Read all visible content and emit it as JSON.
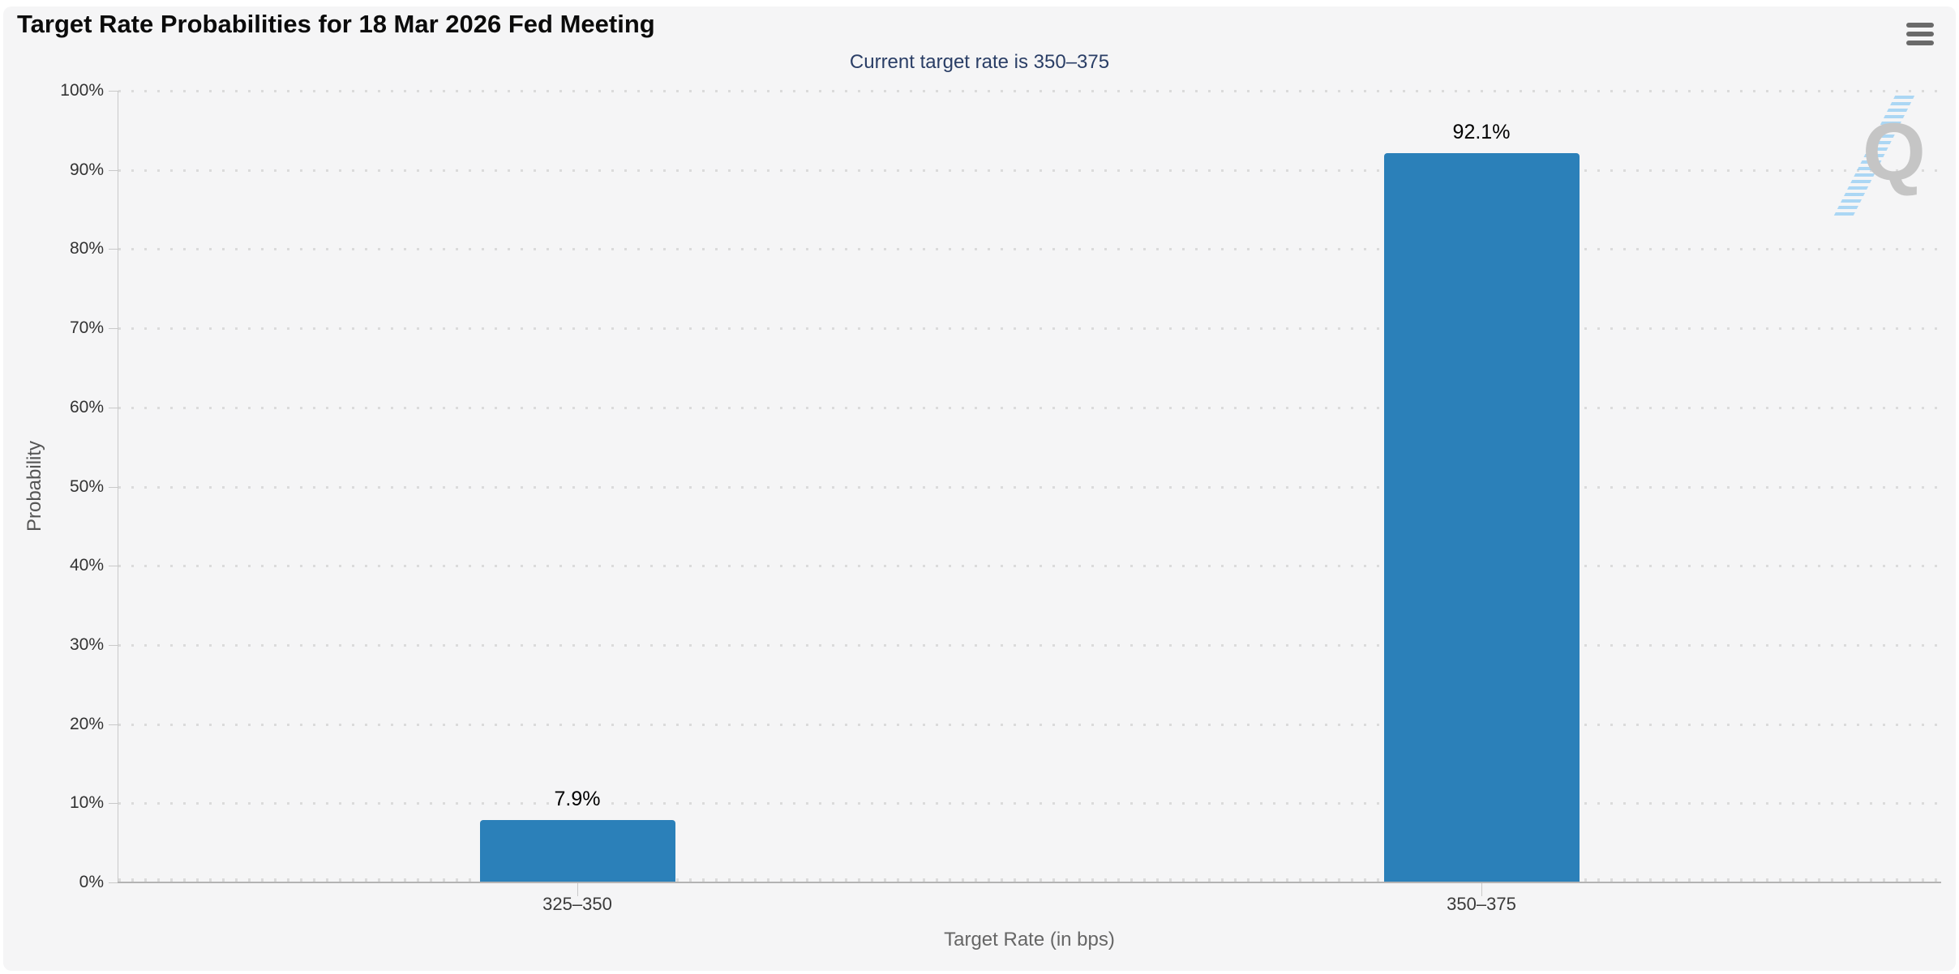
{
  "header": {
    "title": "Target Rate Probabilities for 18 Mar 2026 Fed Meeting",
    "menu_icon": "hamburger-menu-icon"
  },
  "chart_data": {
    "type": "bar",
    "title": "Target Rate Probabilities for 18 Mar 2026 Fed Meeting",
    "subtitle": "Current target rate is 350–375",
    "categories": [
      "325–350",
      "350–375"
    ],
    "values": [
      7.9,
      92.1
    ],
    "value_labels": [
      "7.9%",
      "92.1%"
    ],
    "xlabel": "Target Rate (in bps)",
    "ylabel": "Probability",
    "ylim": [
      0,
      100
    ],
    "ytick_step": 10,
    "ytick_labels": [
      "0%",
      "10%",
      "20%",
      "30%",
      "40%",
      "50%",
      "60%",
      "70%",
      "80%",
      "90%",
      "100%"
    ],
    "grid": "dotted-horizontal",
    "legend": "none",
    "bar_color": "#2b80b9",
    "watermark_letter": "Q"
  },
  "colors": {
    "bar": "#2b80b9",
    "subtitle_text": "#2a3e66",
    "card_background": "#f5f5f6",
    "tick_text": "#333333",
    "muted_text": "#666666"
  }
}
